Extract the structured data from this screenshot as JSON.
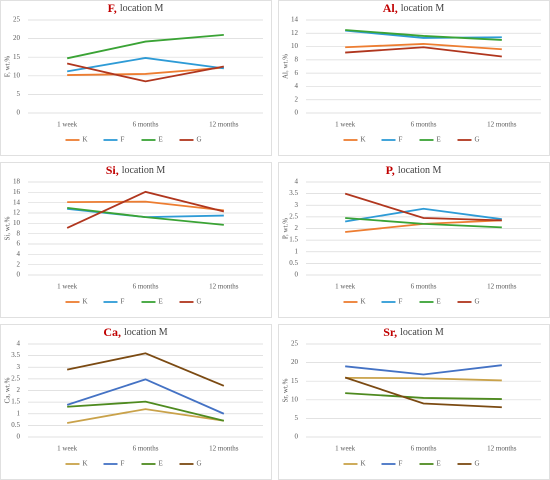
{
  "chart_data": [
    {
      "type": "line",
      "title_parts": [
        "F,",
        "location M"
      ],
      "y_label": "F, wt.%",
      "categories": [
        "1 week",
        "6 months",
        "12 months"
      ],
      "ylim": [
        0,
        25
      ],
      "yticks": [
        0,
        5,
        10,
        15,
        20,
        25
      ],
      "grid": true,
      "series": [
        {
          "name": "K",
          "color": "#ed7d31",
          "values": [
            10.2,
            10.5,
            12.2
          ]
        },
        {
          "name": "F",
          "color": "#2e9bd6",
          "values": [
            11.2,
            14.8,
            12
          ]
        },
        {
          "name": "E",
          "color": "#3aa335",
          "values": [
            14.7,
            19.2,
            21
          ]
        },
        {
          "name": "G",
          "color": "#b0361e",
          "values": [
            13.3,
            8.5,
            12.5
          ]
        }
      ]
    },
    {
      "type": "line",
      "title_parts": [
        "Al,",
        "location M"
      ],
      "y_label": "Al, wt.%",
      "categories": [
        "1 week",
        "6 months",
        "12 months"
      ],
      "ylim": [
        0,
        14
      ],
      "yticks": [
        0,
        2,
        4,
        6,
        8,
        10,
        12,
        14
      ],
      "grid": true,
      "series": [
        {
          "name": "K",
          "color": "#ed7d31",
          "values": [
            9.9,
            10.4,
            9.6
          ]
        },
        {
          "name": "F",
          "color": "#2e9bd6",
          "values": [
            12.4,
            11.3,
            11.4
          ]
        },
        {
          "name": "E",
          "color": "#3aa335",
          "values": [
            12.5,
            11.6,
            11
          ]
        },
        {
          "name": "G",
          "color": "#b0361e",
          "values": [
            9.1,
            9.9,
            8.5
          ]
        }
      ]
    },
    {
      "type": "line",
      "title_parts": [
        "Si,",
        "location M"
      ],
      "y_label": "Si, wt.%",
      "categories": [
        "1 week",
        "6 months",
        "12 months"
      ],
      "ylim": [
        0,
        18
      ],
      "yticks": [
        0,
        2,
        4,
        6,
        8,
        10,
        12,
        14,
        16,
        18
      ],
      "grid": true,
      "series": [
        {
          "name": "K",
          "color": "#ed7d31",
          "values": [
            14.1,
            14.2,
            12.5
          ]
        },
        {
          "name": "F",
          "color": "#2e9bd6",
          "values": [
            12.8,
            11.2,
            11.5
          ]
        },
        {
          "name": "E",
          "color": "#3aa335",
          "values": [
            13,
            11.2,
            9.7
          ]
        },
        {
          "name": "G",
          "color": "#b0361e",
          "values": [
            9.1,
            16.1,
            12.3
          ]
        }
      ]
    },
    {
      "type": "line",
      "title_parts": [
        "P,",
        "location M"
      ],
      "y_label": "P, wt.%",
      "categories": [
        "1 week",
        "6 months",
        "12 months"
      ],
      "ylim": [
        0,
        4
      ],
      "yticks": [
        0,
        0.5,
        1,
        1.5,
        2,
        2.5,
        3,
        3.5,
        4
      ],
      "grid": true,
      "series": [
        {
          "name": "K",
          "color": "#ed7d31",
          "values": [
            1.85,
            2.2,
            2.35
          ]
        },
        {
          "name": "F",
          "color": "#2e9bd6",
          "values": [
            2.3,
            2.85,
            2.4
          ]
        },
        {
          "name": "E",
          "color": "#3aa335",
          "values": [
            2.45,
            2.2,
            2.05
          ]
        },
        {
          "name": "G",
          "color": "#b0361e",
          "values": [
            3.5,
            2.45,
            2.35
          ]
        }
      ]
    },
    {
      "type": "line",
      "title_parts": [
        "Ca,",
        "location M"
      ],
      "y_label": "Ca, wt.%",
      "categories": [
        "1 week",
        "6 months",
        "12 months"
      ],
      "ylim": [
        0,
        4
      ],
      "yticks": [
        0,
        0.5,
        1,
        1.5,
        2,
        2.5,
        3,
        3.5,
        4
      ],
      "grid": true,
      "series": [
        {
          "name": "K",
          "color": "#c9a24a",
          "values": [
            0.6,
            1.2,
            0.7
          ]
        },
        {
          "name": "F",
          "color": "#4472c4",
          "values": [
            1.38,
            2.48,
            1
          ]
        },
        {
          "name": "E",
          "color": "#4e8a1f",
          "values": [
            1.3,
            1.52,
            0.7
          ]
        },
        {
          "name": "G",
          "color": "#7b4a12",
          "values": [
            2.9,
            3.6,
            2.2
          ]
        }
      ]
    },
    {
      "type": "line",
      "title_parts": [
        "Sr,",
        "location M"
      ],
      "y_label": "Sr, wt.%",
      "categories": [
        "1 week",
        "6 months",
        "12 months"
      ],
      "ylim": [
        0,
        25
      ],
      "yticks": [
        0,
        5,
        10,
        15,
        20,
        25
      ],
      "grid": true,
      "series": [
        {
          "name": "K",
          "color": "#c9a24a",
          "values": [
            15.9,
            15.8,
            15.2
          ]
        },
        {
          "name": "F",
          "color": "#4472c4",
          "values": [
            19,
            16.8,
            19.3
          ]
        },
        {
          "name": "E",
          "color": "#4e8a1f",
          "values": [
            11.8,
            10.5,
            10.2
          ]
        },
        {
          "name": "G",
          "color": "#7b4a12",
          "values": [
            16,
            9,
            8
          ]
        }
      ]
    }
  ]
}
